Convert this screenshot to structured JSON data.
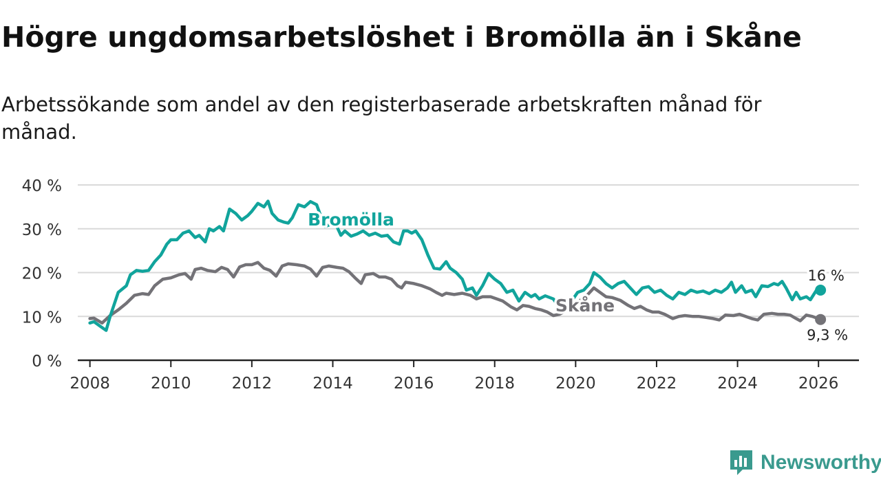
{
  "header": {
    "title": "Högre ungdomsarbetslöshet i Bromölla än i Skåne",
    "subtitle": "Arbetssökande som andel av den registerbaserade arbetskraften månad för månad."
  },
  "brand": {
    "name": "Newsworthy",
    "icon": "newsworthy-logo-icon"
  },
  "colors": {
    "bromolla": "#11a49c",
    "skane": "#737277",
    "grid": "#d9d9d9",
    "axis": "#222222"
  },
  "chart_data": {
    "type": "line",
    "title": "Högre ungdomsarbetslöshet i Bromölla än i Skåne",
    "xlabel": "",
    "ylabel": "",
    "xlim": [
      2007.7,
      2027.0
    ],
    "ylim": [
      0,
      40
    ],
    "grid": true,
    "x_ticks": [
      2008,
      2010,
      2012,
      2014,
      2016,
      2018,
      2020,
      2022,
      2024,
      2026
    ],
    "x_tick_labels": [
      "2008",
      "2010",
      "2012",
      "2014",
      "2016",
      "2018",
      "2020",
      "2022",
      "2024",
      "2026"
    ],
    "y_ticks": [
      0,
      10,
      20,
      30,
      40
    ],
    "y_tick_labels": [
      "0 %",
      "10 %",
      "20 %",
      "30 %",
      "40 %"
    ],
    "series": [
      {
        "name": "Bromölla",
        "label": "Bromölla",
        "color": "#11a49c",
        "end_label": "16 %",
        "points": [
          [
            2008.0,
            8.5
          ],
          [
            2008.1,
            8.8
          ],
          [
            2008.25,
            7.8
          ],
          [
            2008.4,
            6.8
          ],
          [
            2008.5,
            10
          ],
          [
            2008.7,
            15.5
          ],
          [
            2008.9,
            17
          ],
          [
            2009.0,
            19.5
          ],
          [
            2009.15,
            20.5
          ],
          [
            2009.3,
            20.3
          ],
          [
            2009.45,
            20.5
          ],
          [
            2009.6,
            22.5
          ],
          [
            2009.75,
            24
          ],
          [
            2009.9,
            26.5
          ],
          [
            2010.0,
            27.5
          ],
          [
            2010.15,
            27.5
          ],
          [
            2010.3,
            29
          ],
          [
            2010.45,
            29.5
          ],
          [
            2010.6,
            28
          ],
          [
            2010.7,
            28.5
          ],
          [
            2010.85,
            27
          ],
          [
            2010.95,
            30
          ],
          [
            2011.05,
            29.5
          ],
          [
            2011.2,
            30.5
          ],
          [
            2011.3,
            29.5
          ],
          [
            2011.45,
            34.5
          ],
          [
            2011.6,
            33.5
          ],
          [
            2011.75,
            32
          ],
          [
            2011.9,
            33
          ],
          [
            2012.0,
            34
          ],
          [
            2012.15,
            35.8
          ],
          [
            2012.3,
            35
          ],
          [
            2012.4,
            36.3
          ],
          [
            2012.5,
            33.5
          ],
          [
            2012.65,
            32
          ],
          [
            2012.8,
            31.5
          ],
          [
            2012.9,
            31.3
          ],
          [
            2013.0,
            32.5
          ],
          [
            2013.15,
            35.5
          ],
          [
            2013.3,
            35
          ],
          [
            2013.45,
            36.2
          ],
          [
            2013.6,
            35.5
          ],
          [
            2013.7,
            33
          ],
          [
            2013.8,
            30.5
          ],
          [
            2013.95,
            31
          ],
          [
            2014.1,
            30.5
          ],
          [
            2014.2,
            28.5
          ],
          [
            2014.3,
            29.5
          ],
          [
            2014.45,
            28.3
          ],
          [
            2014.6,
            28.8
          ],
          [
            2014.75,
            29.5
          ],
          [
            2014.9,
            28.5
          ],
          [
            2015.05,
            29
          ],
          [
            2015.2,
            28.3
          ],
          [
            2015.35,
            28.5
          ],
          [
            2015.5,
            27
          ],
          [
            2015.65,
            26.5
          ],
          [
            2015.75,
            29.5
          ],
          [
            2015.85,
            29.5
          ],
          [
            2015.95,
            29
          ],
          [
            2016.05,
            29.5
          ],
          [
            2016.2,
            27.5
          ],
          [
            2016.35,
            24
          ],
          [
            2016.5,
            21
          ],
          [
            2016.65,
            20.8
          ],
          [
            2016.8,
            22.5
          ],
          [
            2016.9,
            21
          ],
          [
            2017.05,
            20
          ],
          [
            2017.2,
            18.5
          ],
          [
            2017.3,
            16
          ],
          [
            2017.45,
            16.5
          ],
          [
            2017.55,
            14.8
          ],
          [
            2017.7,
            17
          ],
          [
            2017.85,
            19.8
          ],
          [
            2018.0,
            18.5
          ],
          [
            2018.15,
            17.5
          ],
          [
            2018.3,
            15.5
          ],
          [
            2018.45,
            16
          ],
          [
            2018.6,
            13.5
          ],
          [
            2018.75,
            15.5
          ],
          [
            2018.9,
            14.5
          ],
          [
            2019.0,
            15
          ],
          [
            2019.1,
            14
          ],
          [
            2019.25,
            14.7
          ],
          [
            2019.45,
            14
          ],
          [
            2019.6,
            12
          ],
          [
            2019.75,
            13
          ],
          [
            2019.9,
            13.5
          ],
          [
            2020.05,
            15.5
          ],
          [
            2020.2,
            16
          ],
          [
            2020.35,
            17.5
          ],
          [
            2020.45,
            20
          ],
          [
            2020.6,
            19
          ],
          [
            2020.75,
            17.5
          ],
          [
            2020.9,
            16.5
          ],
          [
            2021.05,
            17.5
          ],
          [
            2021.2,
            18
          ],
          [
            2021.35,
            16.5
          ],
          [
            2021.5,
            15
          ],
          [
            2021.65,
            16.5
          ],
          [
            2021.8,
            16.8
          ],
          [
            2021.95,
            15.5
          ],
          [
            2022.1,
            16
          ],
          [
            2022.25,
            14.8
          ],
          [
            2022.4,
            14
          ],
          [
            2022.55,
            15.5
          ],
          [
            2022.7,
            15
          ],
          [
            2022.85,
            16
          ],
          [
            2023.0,
            15.5
          ],
          [
            2023.15,
            15.8
          ],
          [
            2023.3,
            15.2
          ],
          [
            2023.45,
            16
          ],
          [
            2023.6,
            15.5
          ],
          [
            2023.75,
            16.5
          ],
          [
            2023.85,
            17.8
          ],
          [
            2023.95,
            15.5
          ],
          [
            2024.1,
            17
          ],
          [
            2024.2,
            15.5
          ],
          [
            2024.35,
            16
          ],
          [
            2024.45,
            14.5
          ],
          [
            2024.6,
            17
          ],
          [
            2024.75,
            16.8
          ],
          [
            2024.9,
            17.5
          ],
          [
            2025.0,
            17.2
          ],
          [
            2025.1,
            18
          ],
          [
            2025.2,
            16.5
          ],
          [
            2025.35,
            13.8
          ],
          [
            2025.45,
            15.5
          ],
          [
            2025.55,
            14
          ],
          [
            2025.7,
            14.5
          ],
          [
            2025.8,
            13.8
          ],
          [
            2025.95,
            16
          ],
          [
            2026.05,
            16
          ]
        ]
      },
      {
        "name": "Skåne",
        "label": "Skåne",
        "color": "#737277",
        "end_label": "9,3 %",
        "points": [
          [
            2008.0,
            9.5
          ],
          [
            2008.1,
            9.6
          ],
          [
            2008.3,
            8.5
          ],
          [
            2008.5,
            10.2
          ],
          [
            2008.7,
            11.5
          ],
          [
            2008.9,
            13
          ],
          [
            2009.1,
            14.8
          ],
          [
            2009.3,
            15.2
          ],
          [
            2009.45,
            15
          ],
          [
            2009.6,
            17
          ],
          [
            2009.8,
            18.5
          ],
          [
            2010.0,
            18.8
          ],
          [
            2010.2,
            19.5
          ],
          [
            2010.35,
            19.8
          ],
          [
            2010.5,
            18.5
          ],
          [
            2010.6,
            20.7
          ],
          [
            2010.75,
            21
          ],
          [
            2010.9,
            20.5
          ],
          [
            2011.1,
            20.2
          ],
          [
            2011.25,
            21.2
          ],
          [
            2011.4,
            20.7
          ],
          [
            2011.55,
            19
          ],
          [
            2011.7,
            21.3
          ],
          [
            2011.85,
            21.8
          ],
          [
            2012.0,
            21.8
          ],
          [
            2012.15,
            22.3
          ],
          [
            2012.3,
            21
          ],
          [
            2012.45,
            20.5
          ],
          [
            2012.6,
            19.2
          ],
          [
            2012.75,
            21.5
          ],
          [
            2012.9,
            22
          ],
          [
            2013.1,
            21.8
          ],
          [
            2013.3,
            21.5
          ],
          [
            2013.45,
            20.8
          ],
          [
            2013.6,
            19.2
          ],
          [
            2013.75,
            21.2
          ],
          [
            2013.9,
            21.5
          ],
          [
            2014.1,
            21.2
          ],
          [
            2014.25,
            21
          ],
          [
            2014.4,
            20.2
          ],
          [
            2014.55,
            18.8
          ],
          [
            2014.7,
            17.5
          ],
          [
            2014.8,
            19.5
          ],
          [
            2015.0,
            19.8
          ],
          [
            2015.15,
            19
          ],
          [
            2015.3,
            19
          ],
          [
            2015.45,
            18.5
          ],
          [
            2015.6,
            17
          ],
          [
            2015.7,
            16.5
          ],
          [
            2015.8,
            17.8
          ],
          [
            2016.0,
            17.5
          ],
          [
            2016.2,
            17
          ],
          [
            2016.4,
            16.3
          ],
          [
            2016.55,
            15.5
          ],
          [
            2016.7,
            14.8
          ],
          [
            2016.8,
            15.3
          ],
          [
            2017.0,
            15
          ],
          [
            2017.2,
            15.3
          ],
          [
            2017.4,
            14.8
          ],
          [
            2017.55,
            14
          ],
          [
            2017.7,
            14.5
          ],
          [
            2017.9,
            14.5
          ],
          [
            2018.05,
            14
          ],
          [
            2018.2,
            13.5
          ],
          [
            2018.4,
            12.2
          ],
          [
            2018.55,
            11.5
          ],
          [
            2018.7,
            12.5
          ],
          [
            2018.85,
            12.3
          ],
          [
            2019.0,
            11.8
          ],
          [
            2019.15,
            11.5
          ],
          [
            2019.3,
            11
          ],
          [
            2019.45,
            10.2
          ],
          [
            2019.6,
            10.5
          ],
          [
            2019.8,
            11.5
          ],
          [
            2020.0,
            12.5
          ],
          [
            2020.15,
            14
          ],
          [
            2020.3,
            15
          ],
          [
            2020.45,
            16.5
          ],
          [
            2020.6,
            15.5
          ],
          [
            2020.75,
            14.5
          ],
          [
            2020.9,
            14.3
          ],
          [
            2021.1,
            13.7
          ],
          [
            2021.3,
            12.5
          ],
          [
            2021.45,
            11.8
          ],
          [
            2021.6,
            12.3
          ],
          [
            2021.75,
            11.5
          ],
          [
            2021.9,
            11
          ],
          [
            2022.05,
            11
          ],
          [
            2022.2,
            10.5
          ],
          [
            2022.4,
            9.5
          ],
          [
            2022.55,
            10
          ],
          [
            2022.7,
            10.2
          ],
          [
            2022.9,
            10
          ],
          [
            2023.05,
            10
          ],
          [
            2023.2,
            9.8
          ],
          [
            2023.4,
            9.5
          ],
          [
            2023.55,
            9.2
          ],
          [
            2023.7,
            10.3
          ],
          [
            2023.9,
            10.2
          ],
          [
            2024.05,
            10.5
          ],
          [
            2024.2,
            10
          ],
          [
            2024.35,
            9.5
          ],
          [
            2024.5,
            9.2
          ],
          [
            2024.65,
            10.5
          ],
          [
            2024.85,
            10.7
          ],
          [
            2025.0,
            10.5
          ],
          [
            2025.15,
            10.5
          ],
          [
            2025.3,
            10.3
          ],
          [
            2025.45,
            9.5
          ],
          [
            2025.55,
            9
          ],
          [
            2025.7,
            10.3
          ],
          [
            2025.85,
            10
          ],
          [
            2026.05,
            9.3
          ]
        ]
      }
    ]
  }
}
